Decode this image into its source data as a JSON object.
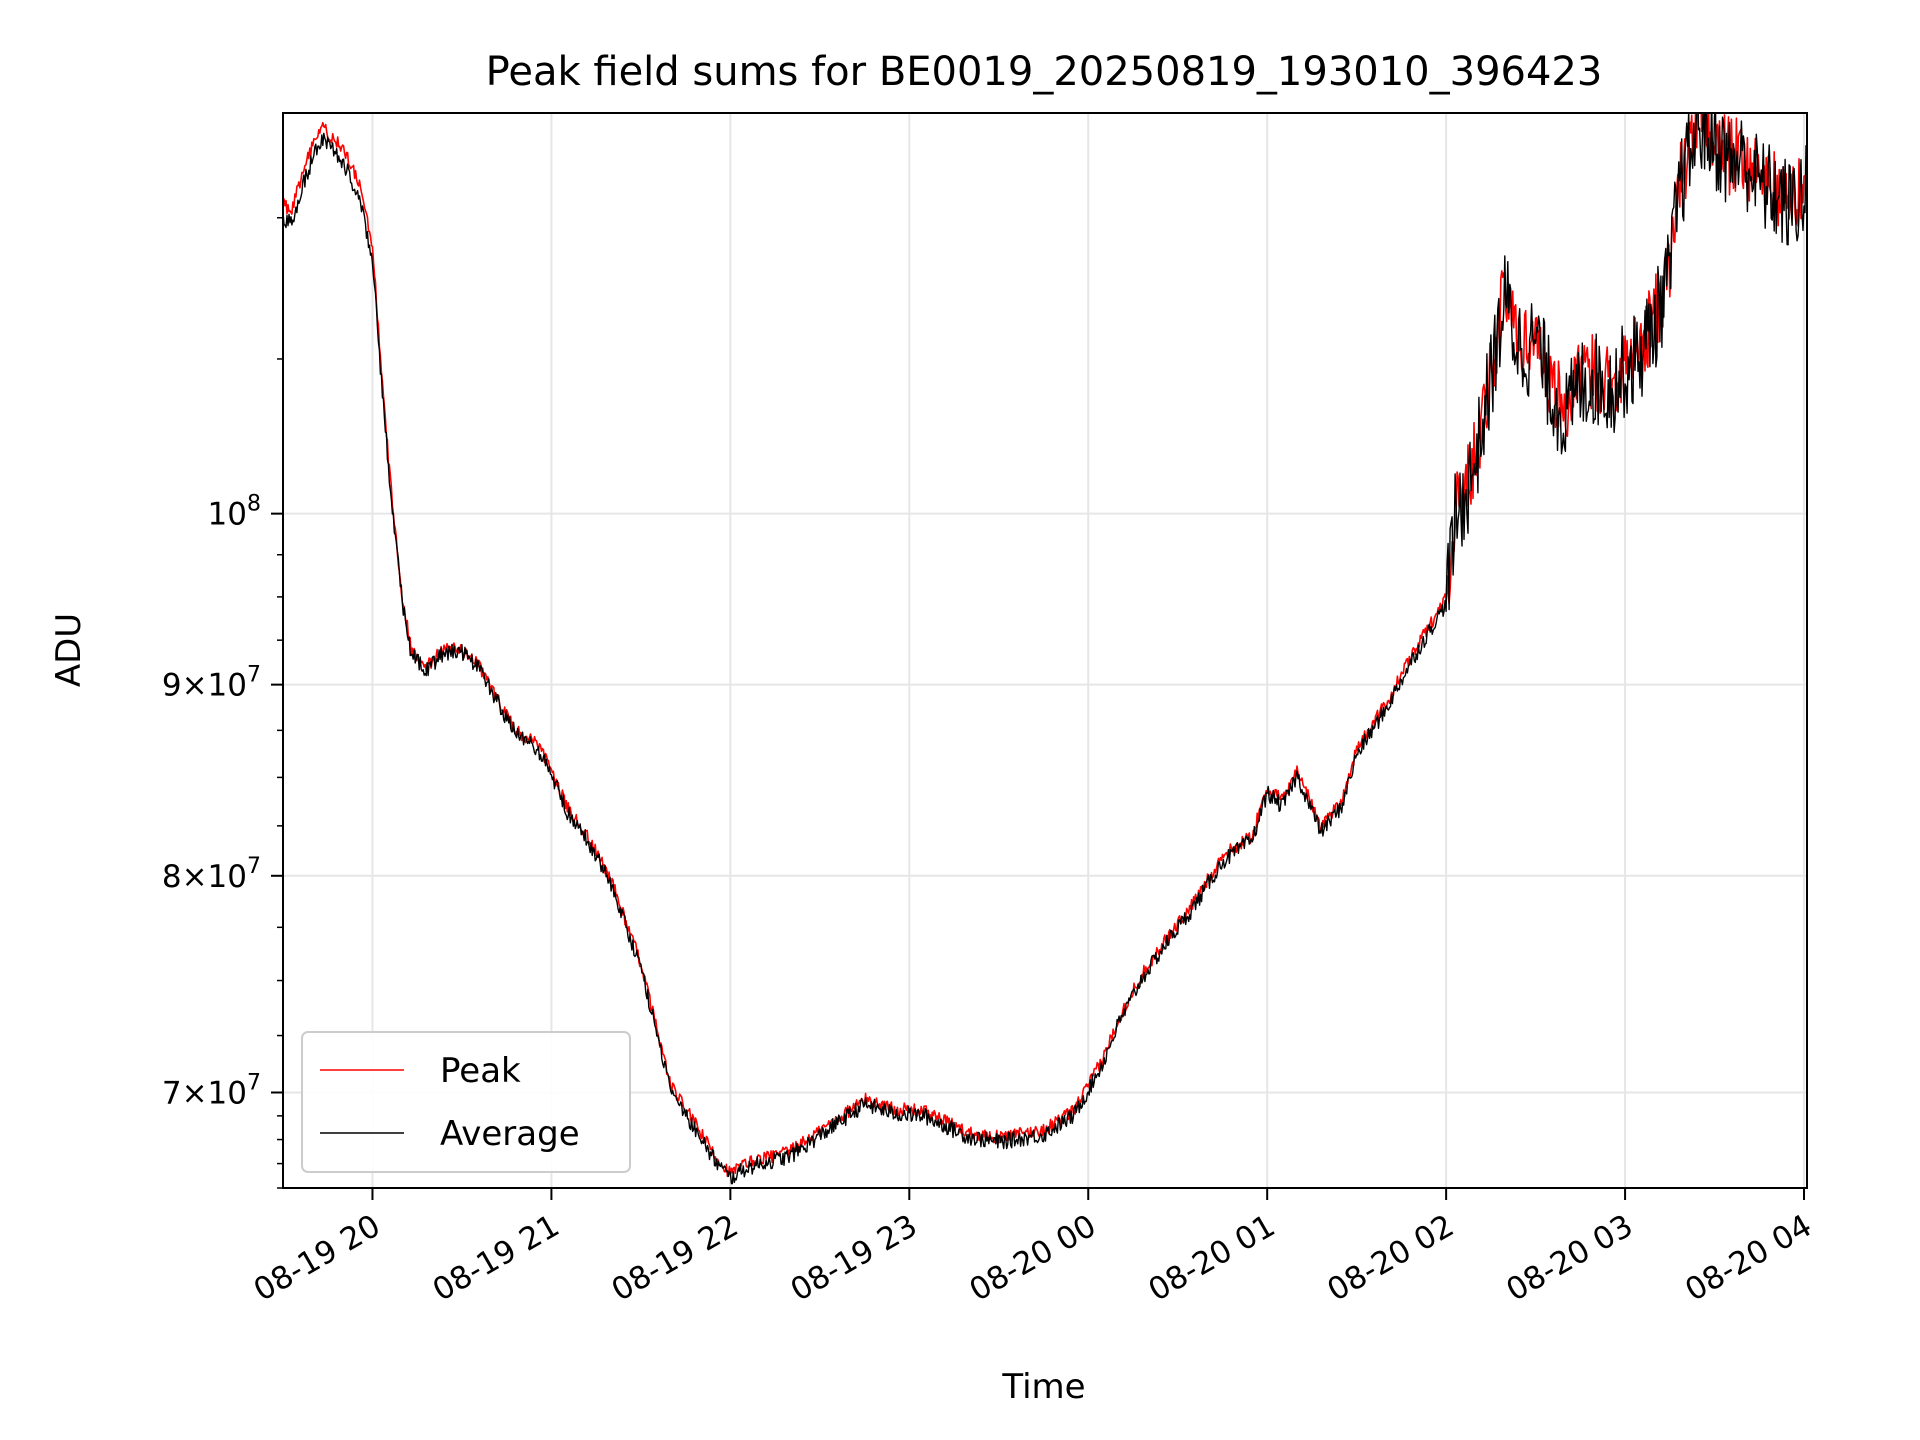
{
  "chart_data": {
    "type": "line",
    "title": "Peak field sums for BE0019_20250819_193010_396423",
    "xlabel": "Time",
    "ylabel": "ADU",
    "yscale": "log",
    "grid": true,
    "legend_position": "lower-left",
    "xlim": [
      "2025-08-19 19:30",
      "2025-08-20 04:01"
    ],
    "ylim": [
      66000000,
      128000000
    ],
    "x_ticks": [
      "2025-08-19 20:00",
      "2025-08-19 21:00",
      "2025-08-19 22:00",
      "2025-08-19 23:00",
      "2025-08-20 00:00",
      "2025-08-20 01:00",
      "2025-08-20 02:00",
      "2025-08-20 03:00",
      "2025-08-20 04:00"
    ],
    "x_tick_labels": [
      "08-19 20",
      "08-19 21",
      "08-19 22",
      "08-19 23",
      "08-20 00",
      "08-20 01",
      "08-20 02",
      "08-20 03",
      "08-20 04"
    ],
    "y_ticks": [
      70000000,
      80000000,
      90000000,
      100000000
    ],
    "y_tick_labels": [
      {
        "value": 100000000,
        "base": "10",
        "exp": "8",
        "mult": ""
      },
      {
        "value": 90000000,
        "base": "10",
        "exp": "7",
        "mult": "9×"
      },
      {
        "value": 80000000,
        "base": "10",
        "exp": "7",
        "mult": "8×"
      },
      {
        "value": 70000000,
        "base": "10",
        "exp": "7",
        "mult": "7×"
      }
    ],
    "series": [
      {
        "name": "Peak",
        "color": "#ff0000",
        "noise": 0.004,
        "x": [
          "2025-08-19 19:30",
          "2025-08-19 19:33",
          "2025-08-19 19:36",
          "2025-08-19 19:40",
          "2025-08-19 19:43",
          "2025-08-19 19:47",
          "2025-08-19 19:50",
          "2025-08-19 19:53",
          "2025-08-19 19:56",
          "2025-08-19 20:00",
          "2025-08-19 20:03",
          "2025-08-19 20:06",
          "2025-08-19 20:10",
          "2025-08-19 20:13",
          "2025-08-19 20:18",
          "2025-08-19 20:24",
          "2025-08-19 20:30",
          "2025-08-19 20:35",
          "2025-08-19 20:40",
          "2025-08-19 20:46",
          "2025-08-19 20:50",
          "2025-08-19 20:55",
          "2025-08-19 21:00",
          "2025-08-19 21:05",
          "2025-08-19 21:12",
          "2025-08-19 21:20",
          "2025-08-19 21:30",
          "2025-08-19 21:40",
          "2025-08-19 21:48",
          "2025-08-19 21:55",
          "2025-08-19 22:00",
          "2025-08-19 22:05",
          "2025-08-19 22:10",
          "2025-08-19 22:20",
          "2025-08-19 22:35",
          "2025-08-19 22:45",
          "2025-08-19 22:55",
          "2025-08-19 23:05",
          "2025-08-19 23:20",
          "2025-08-19 23:30",
          "2025-08-19 23:45",
          "2025-08-19 23:55",
          "2025-08-20 00:00",
          "2025-08-20 00:05",
          "2025-08-20 00:10",
          "2025-08-20 00:18",
          "2025-08-20 00:28",
          "2025-08-20 00:35",
          "2025-08-20 00:45",
          "2025-08-20 00:55",
          "2025-08-20 01:00",
          "2025-08-20 01:05",
          "2025-08-20 01:10",
          "2025-08-20 01:18",
          "2025-08-20 01:25",
          "2025-08-20 01:30",
          "2025-08-20 01:40",
          "2025-08-20 01:48",
          "2025-08-20 01:55",
          "2025-08-20 02:00",
          "2025-08-20 02:03",
          "2025-08-20 02:07",
          "2025-08-20 02:10",
          "2025-08-20 02:13",
          "2025-08-20 02:17",
          "2025-08-20 02:20",
          "2025-08-20 02:23",
          "2025-08-20 02:27",
          "2025-08-20 02:30",
          "2025-08-20 02:35",
          "2025-08-20 02:40",
          "2025-08-20 02:45",
          "2025-08-20 02:50",
          "2025-08-20 02:55",
          "2025-08-20 03:00",
          "2025-08-20 03:05",
          "2025-08-20 03:10",
          "2025-08-20 03:15",
          "2025-08-20 03:18",
          "2025-08-20 03:21",
          "2025-08-20 03:25",
          "2025-08-20 03:30",
          "2025-08-20 03:35",
          "2025-08-20 03:40",
          "2025-08-20 03:45",
          "2025-08-20 03:50",
          "2025-08-20 03:55",
          "2025-08-20 04:01"
        ],
        "values": [
          121000000,
          120500000,
          123000000,
          125500000,
          127000000,
          126000000,
          125200000,
          123800000,
          122200000,
          118000000,
          109000000,
          102000000,
          95000000,
          92000000,
          91000000,
          92000000,
          92000000,
          91200000,
          89800000,
          88000000,
          87200000,
          86800000,
          85400000,
          83500000,
          82000000,
          79800000,
          75800000,
          70300000,
          68700000,
          67300000,
          66600000,
          67000000,
          67200000,
          67500000,
          68800000,
          69700000,
          69300000,
          69200000,
          68300000,
          68100000,
          68400000,
          69200000,
          70300000,
          71500000,
          73200000,
          75300000,
          77300000,
          78600000,
          81000000,
          82000000,
          84500000,
          83800000,
          85400000,
          82500000,
          83800000,
          86500000,
          89000000,
          91500000,
          93500000,
          95000000,
          100000000,
          102000000,
          104000000,
          107000000,
          111500000,
          115000000,
          112000000,
          111000000,
          112000000,
          108500000,
          106500000,
          108800000,
          109200000,
          108500000,
          109800000,
          110800000,
          113000000,
          116500000,
          122500000,
          124800000,
          127600000,
          126200000,
          124600000,
          124800000,
          123000000,
          122200000,
          121200000,
          122500000
        ]
      },
      {
        "name": "Average",
        "color": "#000000",
        "noise": 0.005,
        "x": [
          "2025-08-19 19:30",
          "2025-08-19 19:33",
          "2025-08-19 19:36",
          "2025-08-19 19:40",
          "2025-08-19 19:43",
          "2025-08-19 19:47",
          "2025-08-19 19:50",
          "2025-08-19 19:53",
          "2025-08-19 19:56",
          "2025-08-19 20:00",
          "2025-08-19 20:03",
          "2025-08-19 20:06",
          "2025-08-19 20:10",
          "2025-08-19 20:13",
          "2025-08-19 20:18",
          "2025-08-19 20:24",
          "2025-08-19 20:30",
          "2025-08-19 20:35",
          "2025-08-19 20:40",
          "2025-08-19 20:46",
          "2025-08-19 20:50",
          "2025-08-19 20:55",
          "2025-08-19 21:00",
          "2025-08-19 21:05",
          "2025-08-19 21:12",
          "2025-08-19 21:20",
          "2025-08-19 21:30",
          "2025-08-19 21:40",
          "2025-08-19 21:48",
          "2025-08-19 21:55",
          "2025-08-19 22:00",
          "2025-08-19 22:05",
          "2025-08-19 22:10",
          "2025-08-19 22:20",
          "2025-08-19 22:35",
          "2025-08-19 22:45",
          "2025-08-19 22:55",
          "2025-08-19 23:05",
          "2025-08-19 23:20",
          "2025-08-19 23:30",
          "2025-08-19 23:45",
          "2025-08-19 23:55",
          "2025-08-20 00:00",
          "2025-08-20 00:05",
          "2025-08-20 00:10",
          "2025-08-20 00:18",
          "2025-08-20 00:28",
          "2025-08-20 00:35",
          "2025-08-20 00:45",
          "2025-08-20 00:55",
          "2025-08-20 01:00",
          "2025-08-20 01:05",
          "2025-08-20 01:10",
          "2025-08-20 01:18",
          "2025-08-20 01:25",
          "2025-08-20 01:30",
          "2025-08-20 01:40",
          "2025-08-20 01:48",
          "2025-08-20 01:55",
          "2025-08-20 02:00",
          "2025-08-20 02:03",
          "2025-08-20 02:07",
          "2025-08-20 02:10",
          "2025-08-20 02:13",
          "2025-08-20 02:17",
          "2025-08-20 02:20",
          "2025-08-20 02:23",
          "2025-08-20 02:27",
          "2025-08-20 02:30",
          "2025-08-20 02:35",
          "2025-08-20 02:40",
          "2025-08-20 02:45",
          "2025-08-20 02:50",
          "2025-08-20 02:55",
          "2025-08-20 03:00",
          "2025-08-20 03:05",
          "2025-08-20 03:10",
          "2025-08-20 03:15",
          "2025-08-20 03:18",
          "2025-08-20 03:21",
          "2025-08-20 03:25",
          "2025-08-20 03:30",
          "2025-08-20 03:35",
          "2025-08-20 03:40",
          "2025-08-20 03:45",
          "2025-08-20 03:50",
          "2025-08-20 03:55",
          "2025-08-20 04:01"
        ],
        "values": [
          120000000,
          119500000,
          122000000,
          124500000,
          126000000,
          125000000,
          124200000,
          122800000,
          121200000,
          117000000,
          108500000,
          101600000,
          94700000,
          91700000,
          90800000,
          91800000,
          91800000,
          91000000,
          89600000,
          87800000,
          87000000,
          86600000,
          85200000,
          83300000,
          81800000,
          79600000,
          75600000,
          70100000,
          68500000,
          67100000,
          66400000,
          66800000,
          67000000,
          67300000,
          68600000,
          69500000,
          69100000,
          69000000,
          68100000,
          67900000,
          68200000,
          69000000,
          70100000,
          71300000,
          73000000,
          75100000,
          77100000,
          78400000,
          80700000,
          81800000,
          84200000,
          83500000,
          85100000,
          82200000,
          83500000,
          86200000,
          88700000,
          91200000,
          93200000,
          94600000,
          99500000,
          101500000,
          103500000,
          106500000,
          111000000,
          114500000,
          111500000,
          110500000,
          111500000,
          108000000,
          106000000,
          108300000,
          108700000,
          108000000,
          109300000,
          110300000,
          112500000,
          116000000,
          122000000,
          124300000,
          127200000,
          125800000,
          124200000,
          124400000,
          122600000,
          121800000,
          120800000,
          122000000
        ]
      }
    ]
  }
}
